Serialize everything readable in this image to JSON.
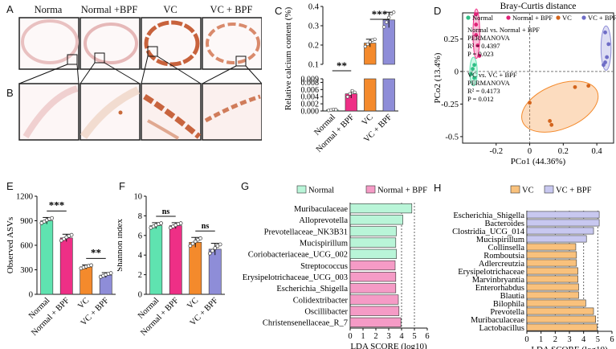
{
  "figure": {
    "panel_letters": [
      "A",
      "B",
      "C",
      "D",
      "E",
      "F",
      "G",
      "H"
    ],
    "histology": {
      "headers": [
        "Norma",
        "Normal +BPF",
        "VC",
        "VC + BPF"
      ]
    },
    "colors": {
      "normal": "#5fe3b0",
      "normal_bpf": "#ee2f86",
      "vc": "#f48a2c",
      "vc_bpf": "#8e8dd8",
      "normal_lda": "#b9f5d8",
      "normal_bpf_lda": "#f59bc6",
      "vc_lda": "#f9c17c",
      "vc_bpf_lda": "#c8c8f0"
    }
  },
  "chart_data": [
    {
      "id": "C",
      "type": "bar",
      "ylabel": "Relative calcium content (%)",
      "categories": [
        "Normal",
        "Normal + BPF",
        "VC",
        "VC + BPF"
      ],
      "values": [
        0.0003,
        0.0048,
        0.21,
        0.33
      ],
      "errors": [
        0.0002,
        0.0012,
        0.02,
        0.04
      ],
      "ylim_low": [
        0,
        0.009
      ],
      "ylim_high": [
        0.1,
        0.4
      ],
      "yticks_low": [
        "0.000",
        "0.002",
        "0.004",
        "0.006",
        "0.008",
        "0.009"
      ],
      "yticks_high": [
        "0.1",
        "0.2",
        "0.3",
        "0.4"
      ],
      "significance": [
        {
          "pair": [
            "Normal",
            "Normal + BPF"
          ],
          "label": "**"
        },
        {
          "pair": [
            "VC",
            "VC + BPF"
          ],
          "label": "***"
        }
      ]
    },
    {
      "id": "D",
      "type": "scatter",
      "title": "Bray-Curtis distance",
      "xlabel": "PCo1 (44.36%)",
      "ylabel": "PCo2 (13.4%)",
      "xlim": [
        -0.4,
        0.5
      ],
      "ylim": [
        -0.55,
        0.45
      ],
      "xticks": [
        "-0.2",
        "0",
        "0.2",
        "0.4"
      ],
      "yticks": [
        "0.25",
        "0",
        "-0.25",
        "-0.5"
      ],
      "legend": [
        "Normal",
        "Normal + BPF",
        "VC",
        "VC + BPF"
      ],
      "annotations": [
        [
          "Normal vs. Normal + BPF",
          "PERMANOVA",
          "R² = 0.4397",
          "P = 0.023"
        ],
        [
          "VC vs. VC + BPF",
          "PERMANOVA",
          "R² = 0.4173",
          "P = 0.012"
        ]
      ],
      "series": [
        {
          "name": "Normal",
          "points": [
            [
              -0.34,
              0.02
            ],
            [
              -0.33,
              -0.05
            ],
            [
              -0.35,
              -0.02
            ],
            [
              -0.33,
              0.05
            ]
          ]
        },
        {
          "name": "Normal + BPF",
          "points": [
            [
              -0.32,
              0.44
            ],
            [
              -0.32,
              0.36
            ],
            [
              -0.32,
              0.28
            ],
            [
              -0.31,
              0.2
            ],
            [
              -0.3,
              0.12
            ]
          ]
        },
        {
          "name": "VC",
          "points": [
            [
              0.0,
              -0.24
            ],
            [
              0.12,
              -0.38
            ],
            [
              0.13,
              -0.41
            ],
            [
              0.27,
              -0.12
            ],
            [
              0.35,
              -0.11
            ]
          ]
        },
        {
          "name": "VC + BPF",
          "points": [
            [
              0.45,
              0.3
            ],
            [
              0.47,
              0.21
            ],
            [
              0.46,
              0.11
            ],
            [
              0.45,
              0.07
            ],
            [
              0.44,
              0.05
            ]
          ]
        }
      ]
    },
    {
      "id": "E",
      "type": "bar",
      "ylabel": "Observed ASVs",
      "categories": [
        "Normal",
        "Normal + BPF",
        "VC",
        "VC + BPF"
      ],
      "values": [
        900,
        690,
        335,
        235
      ],
      "errors": [
        40,
        45,
        25,
        30
      ],
      "ylim": [
        0,
        1200
      ],
      "yticks": [
        "0",
        "300",
        "600",
        "900",
        "1200"
      ],
      "significance": [
        {
          "pair": [
            "Normal",
            "Normal + BPF"
          ],
          "label": "***"
        },
        {
          "pair": [
            "VC",
            "VC + BPF"
          ],
          "label": "**"
        }
      ]
    },
    {
      "id": "F",
      "type": "bar",
      "ylabel": "Shannon index",
      "categories": [
        "Normal",
        "Normal + BPF",
        "VC",
        "VC + BPF"
      ],
      "values": [
        7.0,
        7.0,
        5.3,
        4.6
      ],
      "errors": [
        0.3,
        0.3,
        0.5,
        0.6
      ],
      "ylim": [
        0,
        10
      ],
      "yticks": [
        "0",
        "2",
        "4",
        "6",
        "8",
        "10"
      ],
      "significance": [
        {
          "pair": [
            "Normal",
            "Normal + BPF"
          ],
          "label": "ns"
        },
        {
          "pair": [
            "VC",
            "VC + BPF"
          ],
          "label": "ns"
        }
      ]
    },
    {
      "id": "G",
      "type": "bar",
      "orientation": "horizontal",
      "xlabel": "LDA SCORE (log10)",
      "xlim": [
        0,
        6
      ],
      "xticks": [
        "0",
        "1",
        "2",
        "3",
        "4",
        "5",
        "6"
      ],
      "legend": [
        "Normal",
        "Normal + BPF"
      ],
      "categories": [
        "Muribaculaceae",
        "Alloprevotella",
        "Prevotellaceae_NK3B31",
        "Mucispirillum",
        "Coriobacteriaceae_UCG_002",
        "Streptococcus",
        "Erysipelotrichaceae_UCG_003",
        "Escherichia_Shigella",
        "Colidextribacter",
        "Oscillibacter",
        "Christensenellaceae_R_7"
      ],
      "values": [
        4.8,
        4.1,
        3.6,
        3.55,
        3.6,
        3.5,
        3.55,
        3.55,
        3.75,
        3.8,
        3.95
      ],
      "groups": [
        "Normal",
        "Normal",
        "Normal",
        "Normal",
        "Normal",
        "Normal + BPF",
        "Normal + BPF",
        "Normal + BPF",
        "Normal + BPF",
        "Normal + BPF",
        "Normal + BPF"
      ]
    },
    {
      "id": "H",
      "type": "bar",
      "orientation": "horizontal",
      "xlabel": "LDA SCORE (log10)",
      "xlim": [
        0,
        6
      ],
      "xticks": [
        "0",
        "1",
        "2",
        "3",
        "4",
        "5",
        "6"
      ],
      "legend": [
        "VC",
        "VC + BPF"
      ],
      "categories": [
        "Escherichia_Shigella",
        "Bacteroides",
        "Clostridia_UCG_014",
        "Mucispirillum",
        "Collinsella",
        "Romboutsia",
        "Adlercreutzia",
        "Erysipelotrichaceae",
        "Marvinbryantia",
        "Enterorhabdus",
        "Blautia",
        "Bilophila",
        "Prevotella",
        "Muribaculaceae",
        "Lactobacillus"
      ],
      "values": [
        5.1,
        5.1,
        4.7,
        4.2,
        3.45,
        3.5,
        3.5,
        3.6,
        3.6,
        3.65,
        3.65,
        4.15,
        4.7,
        4.85,
        4.95
      ],
      "groups": [
        "VC + BPF",
        "VC + BPF",
        "VC + BPF",
        "VC + BPF",
        "VC",
        "VC",
        "VC",
        "VC",
        "VC",
        "VC",
        "VC",
        "VC",
        "VC",
        "VC",
        "VC"
      ]
    }
  ]
}
